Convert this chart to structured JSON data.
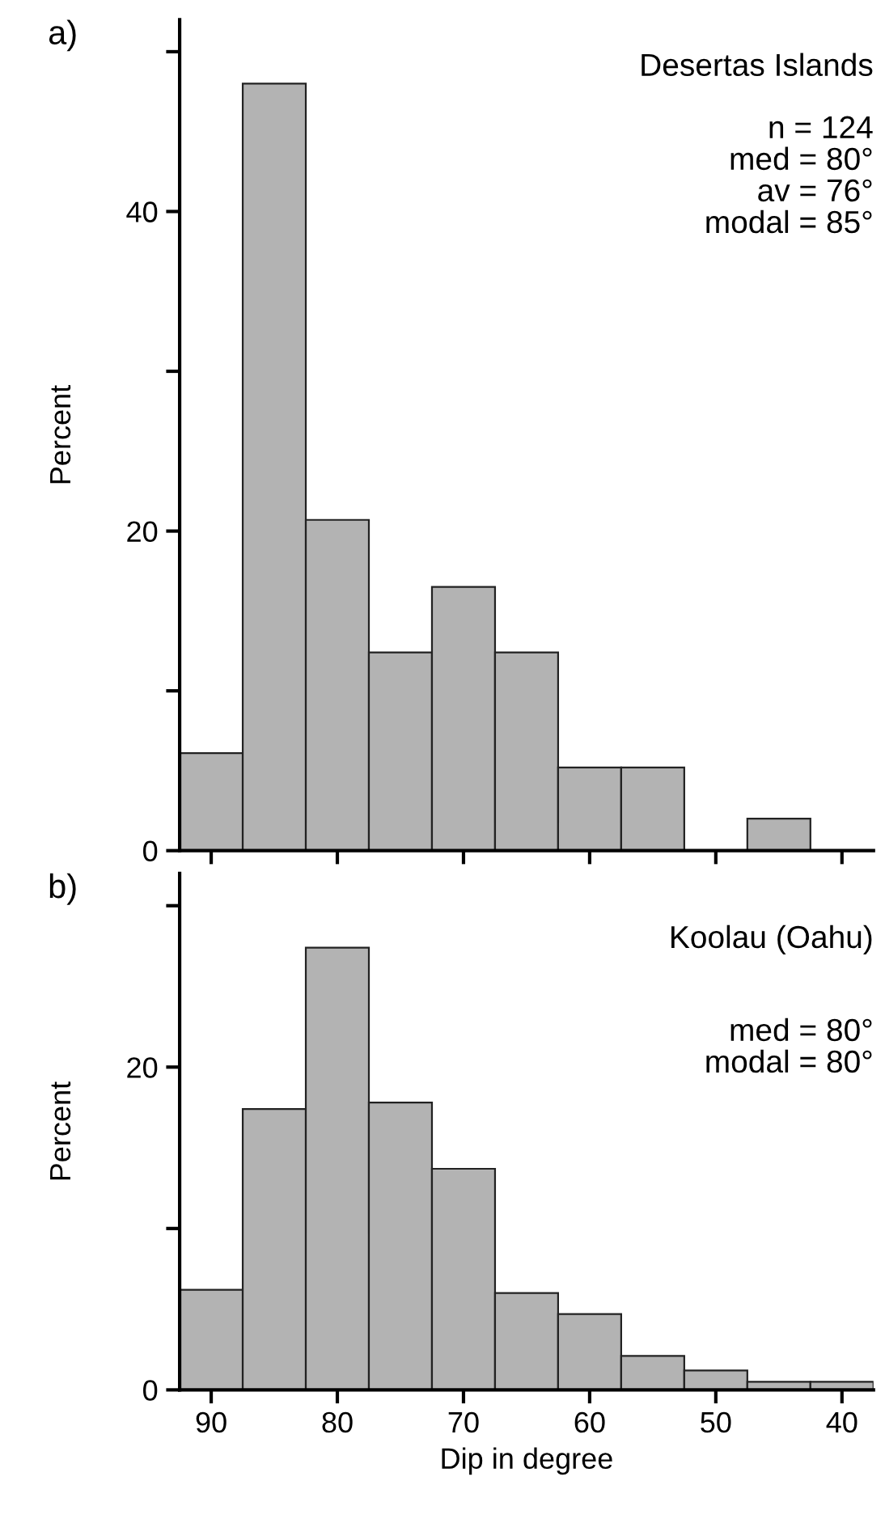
{
  "chart_data": [
    {
      "type": "histogram",
      "ylabel": "Percent",
      "bins": [
        92.5,
        87.5,
        82.5,
        77.5,
        72.5,
        67.5,
        62.5,
        57.5,
        52.5,
        47.5,
        42.5,
        37.5
      ],
      "values": [
        6.1,
        48.0,
        20.7,
        12.4,
        16.5,
        12.4,
        5.2,
        5.2,
        0,
        2.0,
        0
      ],
      "color": "#b3b3b3",
      "xlim": [
        92.5,
        37.5
      ],
      "xticks": [
        90,
        80,
        70,
        60,
        50,
        40
      ],
      "ylim": [
        0,
        52
      ],
      "yticks": [
        0,
        {
          "value": 10,
          "label": null
        },
        20,
        {
          "value": 30,
          "label": null
        },
        40,
        {
          "value": 50,
          "label": null
        }
      ],
      "tick_labels": "y",
      "grid": false,
      "annotations": [
        "a)",
        "Desertas Islands",
        "n = 124\nmed = 80°\nav = 76°\nmodal = 85°"
      ]
    },
    {
      "type": "histogram",
      "xlabel": "Dip in degree",
      "ylabel": "Percent",
      "bins": [
        92.5,
        87.5,
        82.5,
        77.5,
        72.5,
        67.5,
        62.5,
        57.5,
        52.5,
        47.5,
        42.5,
        37.5
      ],
      "values": [
        6.2,
        17.4,
        27.4,
        17.8,
        13.7,
        6.0,
        4.7,
        2.1,
        1.2,
        0.5,
        0.5
      ],
      "color": "#b3b3b3",
      "xlim": [
        92.5,
        37.5
      ],
      "xticks": [
        90,
        80,
        70,
        60,
        50,
        40
      ],
      "ylim": [
        0,
        32
      ],
      "yticks": [
        0,
        {
          "value": 10,
          "label": null
        },
        20,
        {
          "value": 30,
          "label": null
        }
      ],
      "grid": false,
      "annotations": [
        "b)",
        "Koolau (Oahu)",
        "med = 80°\nmodal = 80°"
      ]
    }
  ]
}
